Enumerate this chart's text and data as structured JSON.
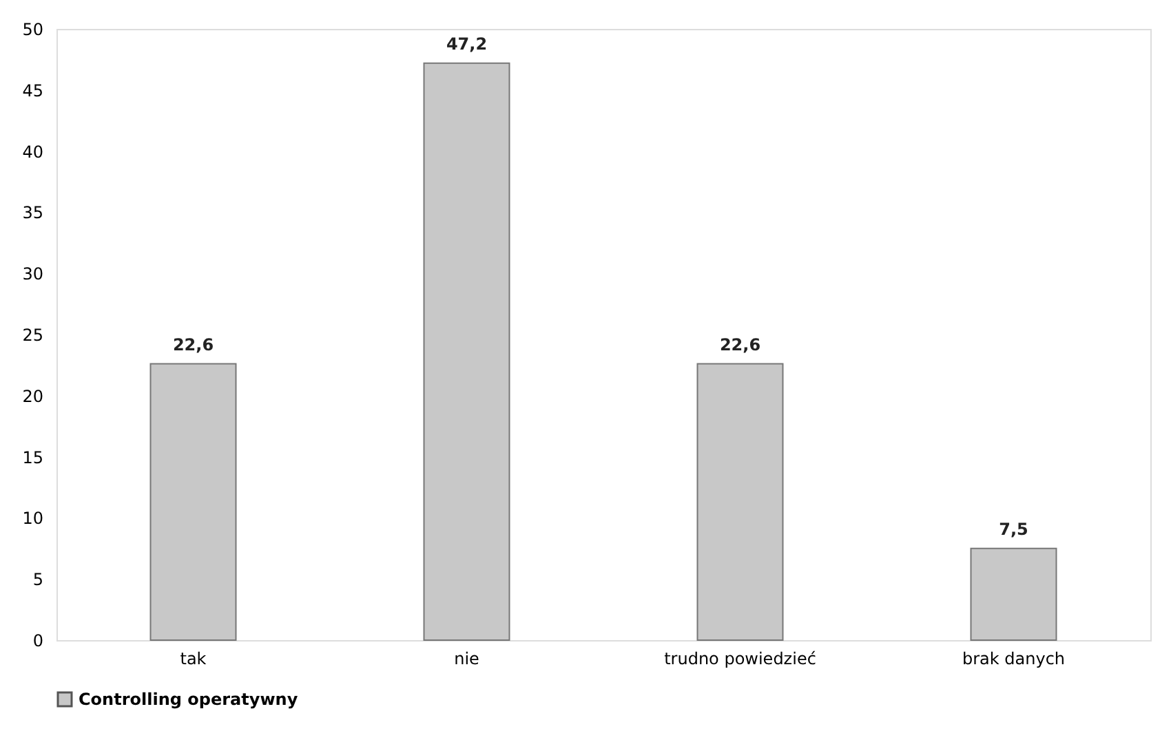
{
  "chart_data": {
    "type": "bar",
    "categories": [
      "tak",
      "nie",
      "trudno powiedzieć",
      "brak danych"
    ],
    "series": [
      {
        "name": "Controlling operatywny",
        "color": "#c8c8c8",
        "values": [
          22.6,
          47.2,
          22.6,
          7.5
        ],
        "value_labels": [
          "22,6",
          "47,2",
          "22,6",
          "7,5"
        ]
      }
    ],
    "ylim": [
      0,
      50
    ],
    "yticks": [
      0,
      5,
      10,
      15,
      20,
      25,
      30,
      35,
      40,
      45,
      50
    ],
    "grid": false,
    "legend": "bottom"
  }
}
